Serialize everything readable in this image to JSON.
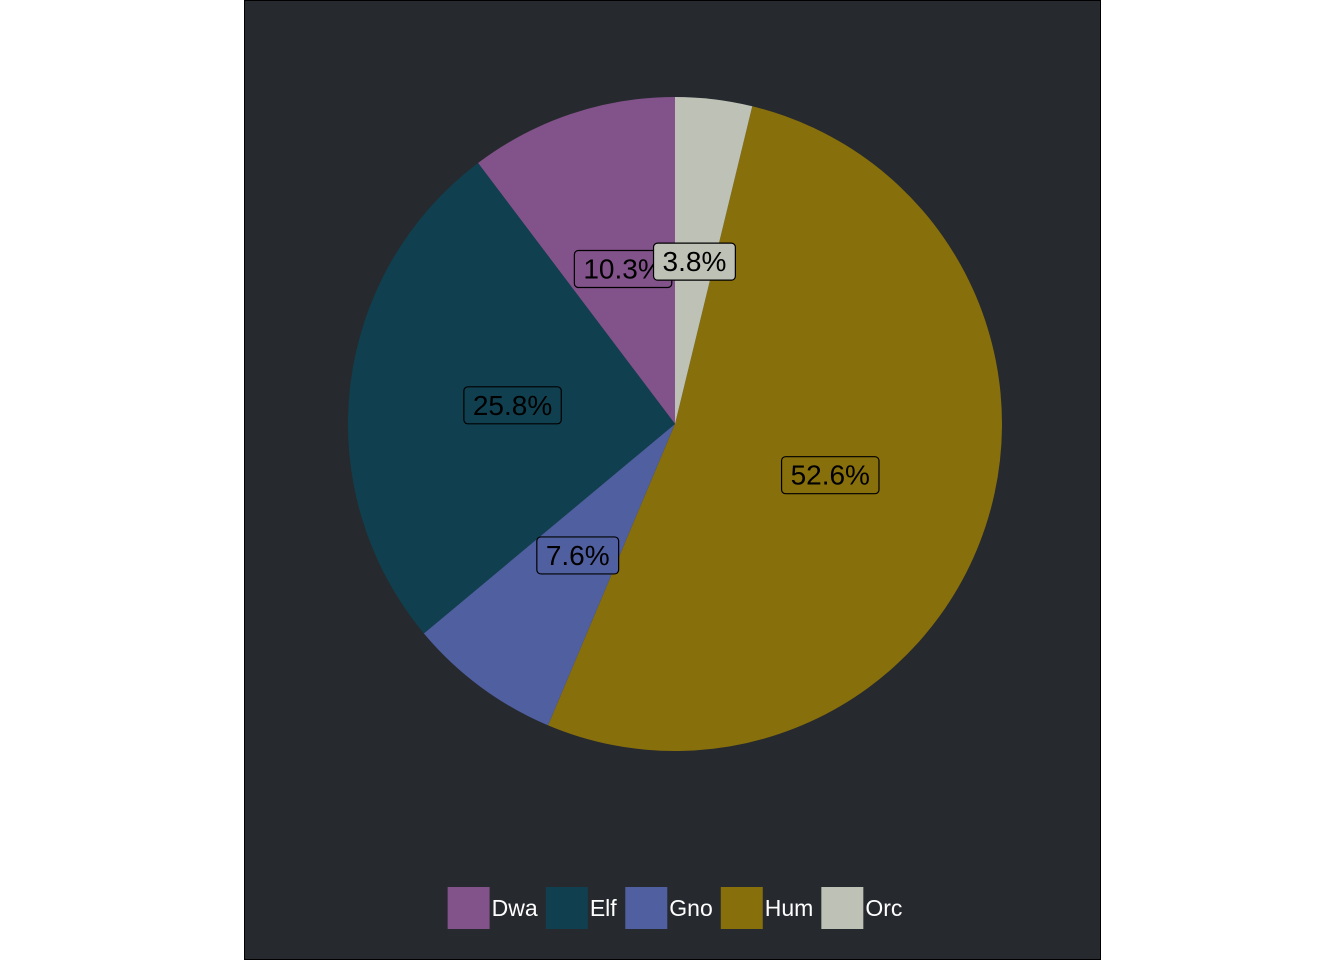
{
  "chart_data": {
    "type": "pie",
    "categories": [
      "Dwa",
      "Elf",
      "Gno",
      "Hum",
      "Orc"
    ],
    "values": [
      10.3,
      25.8,
      7.6,
      52.6,
      3.8
    ],
    "labels": [
      "10.3%",
      "25.8%",
      "7.6%",
      "52.6%",
      "3.8%"
    ],
    "colors": [
      "#82528a",
      "#10404f",
      "#505fa0",
      "#876f0c",
      "#bdc1b6"
    ],
    "direction": "counterclockwise from top",
    "legend_position": "bottom",
    "background": "#26292e"
  }
}
